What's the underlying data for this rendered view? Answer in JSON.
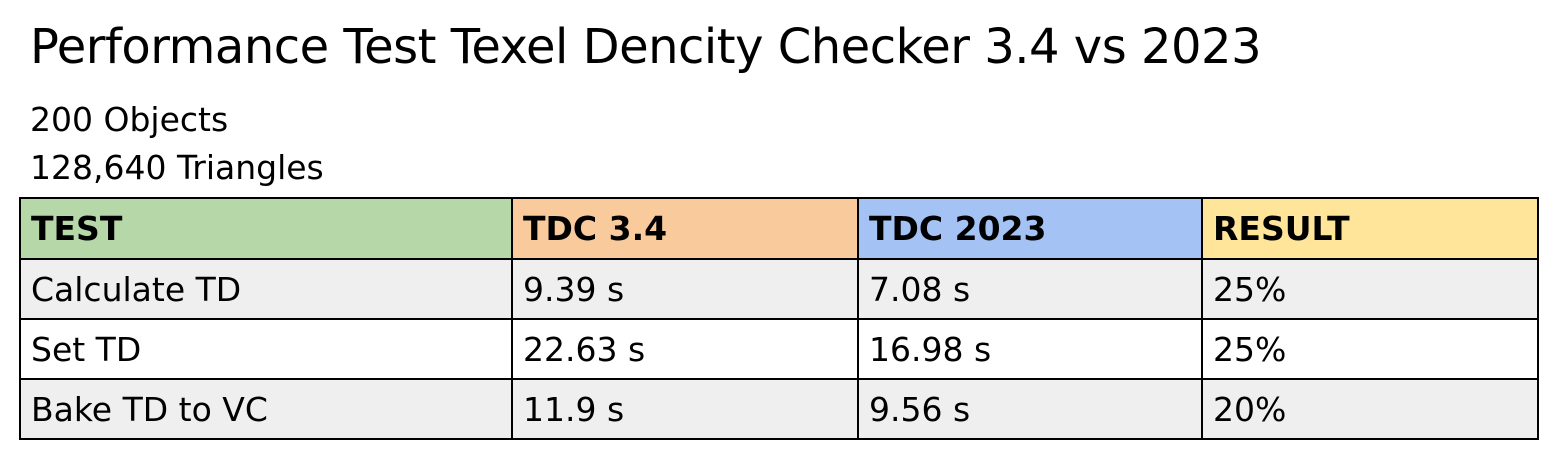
{
  "title": "Performance Test Texel Dencity Checker 3.4 vs 2023",
  "stats": {
    "objects": "200 Objects",
    "triangles": "128,640 Triangles"
  },
  "table": {
    "headers": [
      {
        "label": "TEST",
        "color": "#b6d7a8"
      },
      {
        "label": "TDC 3.4",
        "color": "#f9cb9c"
      },
      {
        "label": "TDC 2023",
        "color": "#a4c2f4"
      },
      {
        "label": "RESULT",
        "color": "#ffe599"
      }
    ],
    "rows": [
      {
        "test": "Calculate TD",
        "tdc34": "9.39 s",
        "tdc2023": "7.08 s",
        "result": "25%"
      },
      {
        "test": "Set TD",
        "tdc34": "22.63 s",
        "tdc2023": "16.98 s",
        "result": "25%"
      },
      {
        "test": "Bake TD to VC",
        "tdc34": "11.9 s",
        "tdc2023": "9.56 s",
        "result": "20%"
      }
    ]
  },
  "colors": {
    "odd_row": "#efefef",
    "even_row": "#ffffff",
    "border": "#000000"
  }
}
